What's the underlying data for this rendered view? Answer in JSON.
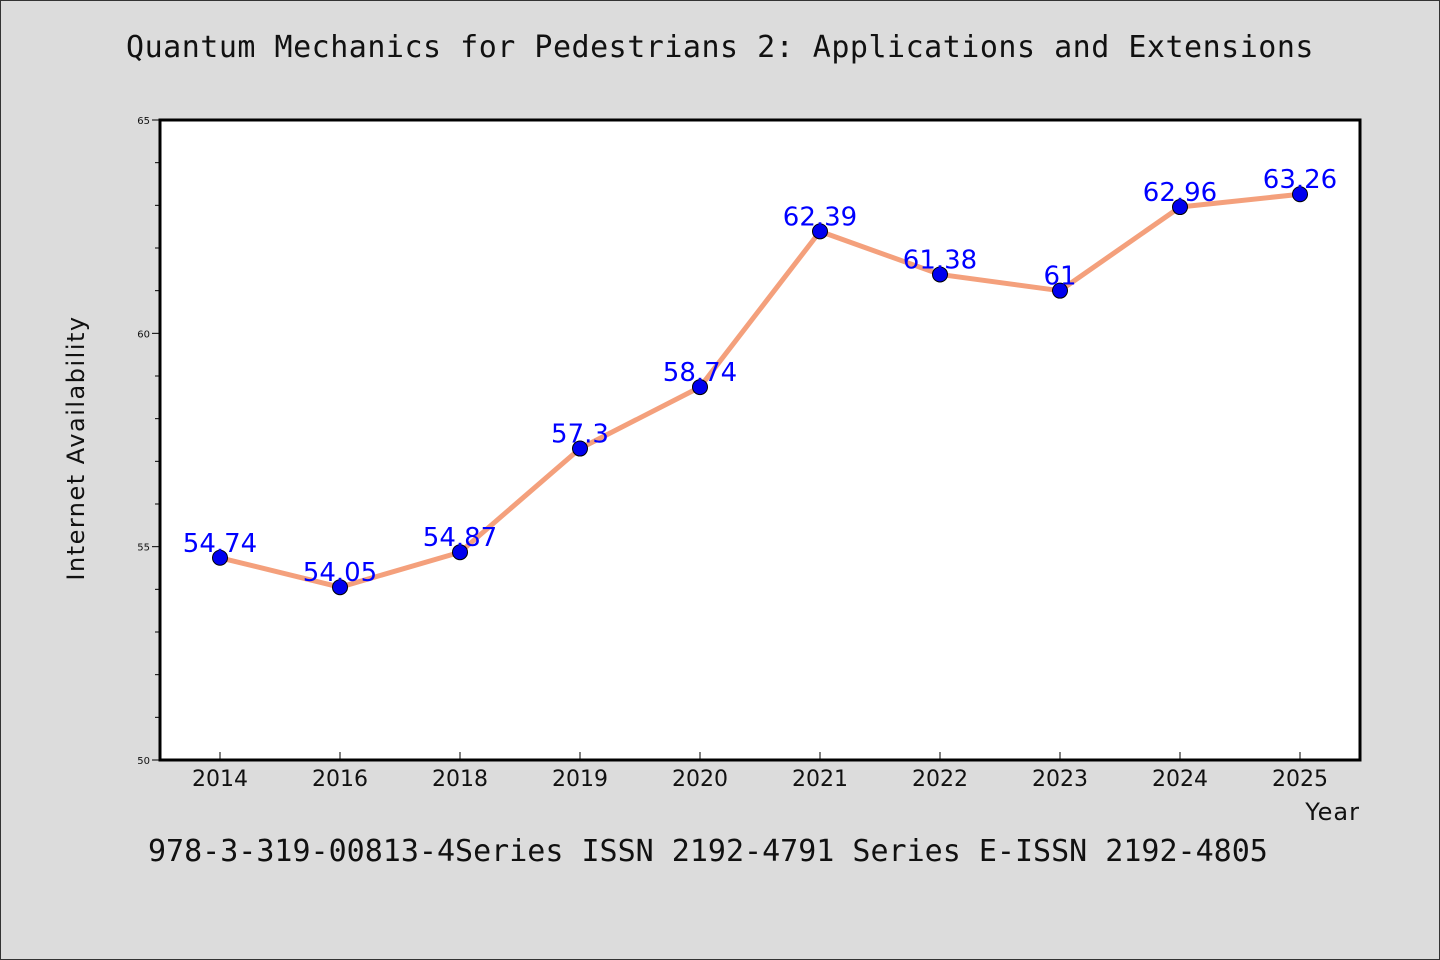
{
  "chart_data": {
    "type": "line",
    "title": "Quantum Mechanics for Pedestrians 2: Applications and Extensions",
    "xlabel": "Year",
    "ylabel": "Internet Availability",
    "categories": [
      "2014",
      "2016",
      "2018",
      "2019",
      "2020",
      "2021",
      "2022",
      "2023",
      "2024",
      "2025"
    ],
    "series": [
      {
        "values": [
          54.74,
          54.05,
          54.87,
          57.3,
          58.74,
          62.39,
          61.38,
          61,
          62.96,
          63.26
        ],
        "labels": [
          "54.74",
          "54.05",
          "54.87",
          "57.3",
          "58.74",
          "62.39",
          "61.38",
          "61",
          "62.96",
          "63.26"
        ],
        "line_color": "#f4a07c",
        "marker_color": "#0000ee",
        "label_color": "#0000ff"
      }
    ],
    "ylim": [
      50,
      65
    ],
    "yticks": [
      "50",
      "55",
      "60",
      "65"
    ],
    "grid": false,
    "legend": "none"
  },
  "footer": "978-3-319-00813-4Series ISSN 2192-4791 Series E-ISSN 2192-4805"
}
